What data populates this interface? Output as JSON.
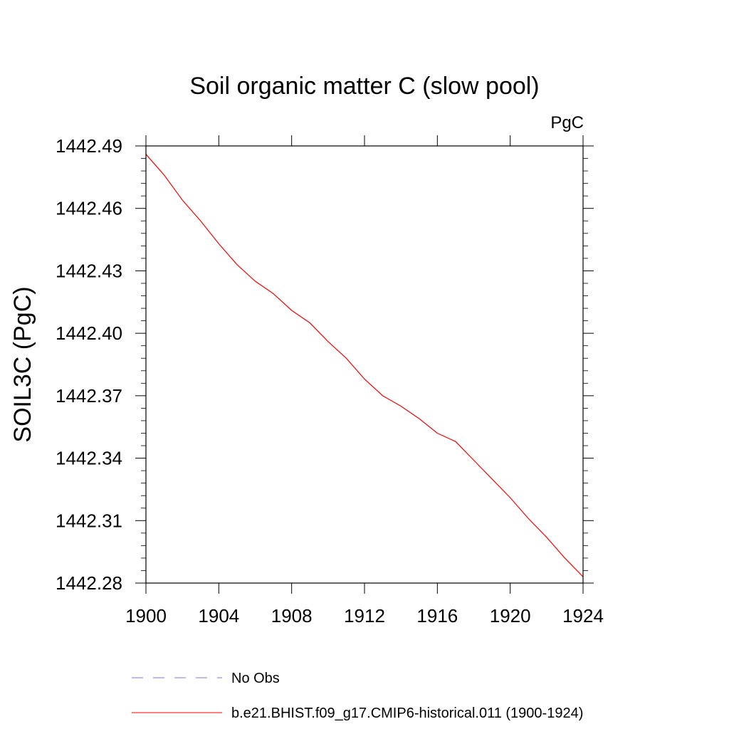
{
  "chart_data": {
    "type": "line",
    "title": "Soil organic matter C (slow pool)",
    "units_label": "PgC",
    "xlabel": "",
    "ylabel": "SOIL3C  (PgC)",
    "xlim": [
      1900,
      1924
    ],
    "ylim": [
      1442.28,
      1442.49
    ],
    "x_ticks": [
      1900,
      1904,
      1908,
      1912,
      1916,
      1920,
      1924
    ],
    "x_tick_labels": [
      "1900",
      "1904",
      "1908",
      "1912",
      "1916",
      "1920",
      "1924"
    ],
    "y_ticks": [
      1442.28,
      1442.31,
      1442.34,
      1442.37,
      1442.4,
      1442.43,
      1442.46,
      1442.49
    ],
    "y_tick_labels": [
      "1442.28",
      "1442.31",
      "1442.34",
      "1442.37",
      "1442.40",
      "1442.43",
      "1442.46",
      "1442.49"
    ],
    "grid": false,
    "legend_position": "bottom",
    "series": [
      {
        "name": "b.e21.BHIST.f09_g17.CMIP6-historical.011 (1900-1924)",
        "color": "#ff0000",
        "line_style": "solid",
        "x": [
          1900,
          1901,
          1902,
          1903,
          1904,
          1905,
          1906,
          1907,
          1908,
          1909,
          1910,
          1911,
          1912,
          1913,
          1914,
          1915,
          1916,
          1917,
          1918,
          1919,
          1920,
          1921,
          1922,
          1923,
          1924
        ],
        "y": [
          1442.486,
          1442.476,
          1442.464,
          1442.454,
          1442.443,
          1442.433,
          1442.425,
          1442.419,
          1442.411,
          1442.405,
          1442.396,
          1442.388,
          1442.378,
          1442.37,
          1442.365,
          1442.359,
          1442.352,
          1442.348,
          1442.339,
          1442.33,
          1442.321,
          1442.311,
          1442.302,
          1442.292,
          1442.283
        ]
      }
    ],
    "legend": [
      {
        "label": "No Obs",
        "color": "#7777cc",
        "line_style": "dashed"
      },
      {
        "label": "b.e21.BHIST.f09_g17.CMIP6-historical.011 (1900-1924)",
        "color": "#ff0000",
        "line_style": "solid"
      }
    ]
  }
}
